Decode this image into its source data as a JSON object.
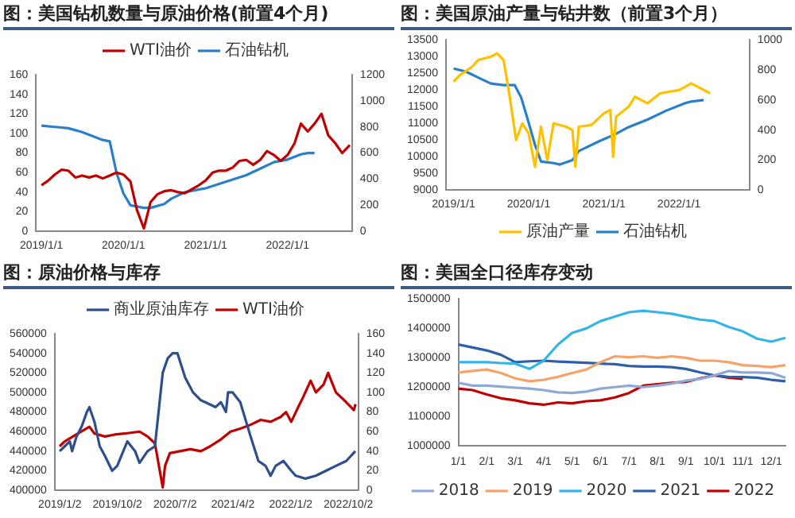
{
  "chart_data": [
    {
      "type": "line",
      "title": "图：美国钻机数量与原油价格(前置4个月)",
      "legend": "top",
      "grid": false,
      "marker": "none",
      "line_style": "solid",
      "xlim": [
        "2018-12-08",
        "2022-10-15"
      ],
      "xticks": [
        {
          "value": "2019-01-01",
          "label": "2019/1/1"
        },
        {
          "value": "2020-01-01",
          "label": "2020/1/1"
        },
        {
          "value": "2021-01-01",
          "label": "2021/1/1"
        },
        {
          "value": "2022-01-01",
          "label": "2022/1/1"
        }
      ],
      "ylim": [
        0,
        160
      ],
      "yticks": [
        0,
        20,
        40,
        60,
        80,
        100,
        120,
        140,
        160
      ],
      "y2lim": [
        0,
        1200
      ],
      "y2ticks": [
        0,
        200,
        400,
        600,
        800,
        1000,
        1200
      ],
      "series": [
        {
          "name": "WTI油价",
          "color": "#c00000",
          "x": [
            "2019-01",
            "2019-02",
            "2019-03",
            "2019-04",
            "2019-05",
            "2019-06",
            "2019-07",
            "2019-08",
            "2019-09",
            "2019-10",
            "2019-11",
            "2019-12",
            "2020-01",
            "2020-02",
            "2020-03",
            "2020-04",
            "2020-05",
            "2020-06",
            "2020-07",
            "2020-08",
            "2020-09",
            "2020-10",
            "2020-11",
            "2020-12",
            "2021-01",
            "2021-02",
            "2021-03",
            "2021-04",
            "2021-05",
            "2021-06",
            "2021-07",
            "2021-08",
            "2021-09",
            "2021-10",
            "2021-11",
            "2021-12",
            "2022-01",
            "2022-02",
            "2022-03",
            "2022-04",
            "2022-05",
            "2022-06",
            "2022-07",
            "2022-08",
            "2022-09",
            "2022-10-05"
          ],
          "values": [
            47,
            52,
            58,
            63,
            62,
            55,
            57,
            55,
            57,
            54,
            57,
            60,
            58,
            51,
            22,
            3,
            30,
            38,
            41,
            42,
            40,
            39,
            43,
            47,
            52,
            60,
            62,
            62,
            65,
            72,
            73,
            68,
            73,
            82,
            78,
            72,
            78,
            90,
            110,
            102,
            110,
            120,
            98,
            90,
            80,
            88
          ]
        },
        {
          "name": "石油钻机",
          "color": "#2a7fc9",
          "axis": "y2",
          "x": [
            "2019-01",
            "2019-03",
            "2019-05",
            "2019-07",
            "2019-09",
            "2019-10",
            "2019-11",
            "2019-12",
            "2020-01",
            "2020-02",
            "2020-04",
            "2020-05",
            "2020-07",
            "2020-08",
            "2020-10",
            "2021-01",
            "2021-04",
            "2021-07",
            "2021-09",
            "2021-11",
            "2022-01",
            "2022-03",
            "2022-04",
            "2022-05"
          ],
          "values": [
            810,
            800,
            790,
            760,
            720,
            700,
            690,
            450,
            290,
            200,
            180,
            180,
            210,
            250,
            300,
            330,
            380,
            430,
            480,
            530,
            550,
            590,
            600,
            600
          ]
        }
      ]
    },
    {
      "type": "line",
      "title": "图：美国原油产量与钻井数（前置3个月）",
      "legend": "bottom",
      "grid": false,
      "marker": "none",
      "line_style": "solid",
      "xlim": [
        "2018-11-25",
        "2022-12-10"
      ],
      "xticks": [
        {
          "value": "2019-01-01",
          "label": "2019/1/1"
        },
        {
          "value": "2020-01-01",
          "label": "2020/1/1"
        },
        {
          "value": "2021-01-01",
          "label": "2021/1/1"
        },
        {
          "value": "2022-01-01",
          "label": "2022/1/1"
        }
      ],
      "ylim": [
        9000,
        13500
      ],
      "yticks": [
        9000,
        9500,
        10000,
        10500,
        11000,
        11500,
        12000,
        12500,
        13000,
        13500
      ],
      "y2lim": [
        0,
        1000
      ],
      "y2ticks": [
        0,
        200,
        400,
        600,
        800,
        1000
      ],
      "series": [
        {
          "name": "原油产量",
          "color": "#ffc000",
          "x": [
            "2019-01-01",
            "2019-02-01",
            "2019-04-01",
            "2019-05-01",
            "2019-07-01",
            "2019-08-01",
            "2019-09-01",
            "2019-10-01",
            "2019-11-01",
            "2019-12-01",
            "2020-01-01",
            "2020-02-01",
            "2020-03-01",
            "2020-04-01",
            "2020-05-01",
            "2020-07-01",
            "2020-08-01",
            "2020-08-15",
            "2020-09-01",
            "2020-11-01",
            "2021-01-01",
            "2021-02-01",
            "2021-02-15",
            "2021-03-01",
            "2021-05-01",
            "2021-06-01",
            "2021-08-01",
            "2021-10-01",
            "2022-01-01",
            "2022-02-01",
            "2022-03-01",
            "2022-04-01",
            "2022-06-01"
          ],
          "values": [
            12250,
            12450,
            12700,
            12900,
            13000,
            13100,
            12900,
            11800,
            10500,
            11000,
            10700,
            9700,
            10900,
            9900,
            11000,
            10900,
            10800,
            9700,
            10900,
            10950,
            11300,
            11400,
            10000,
            11200,
            11500,
            11800,
            11600,
            11900,
            12000,
            12100,
            12200,
            12100,
            11900
          ]
        },
        {
          "name": "石油钻机",
          "color": "#2a7fc9",
          "axis": "y2",
          "x": [
            "2019-01",
            "2019-03",
            "2019-05",
            "2019-07",
            "2019-09",
            "2019-10-25",
            "2019-11-25",
            "2020-01",
            "2020-02",
            "2020-03",
            "2020-05",
            "2020-06",
            "2020-08",
            "2020-09",
            "2020-12",
            "2021-03",
            "2021-05",
            "2021-08",
            "2021-11",
            "2022-02",
            "2022-03",
            "2022-05"
          ],
          "values": [
            810,
            790,
            750,
            710,
            700,
            700,
            620,
            450,
            300,
            190,
            180,
            170,
            200,
            260,
            320,
            375,
            420,
            470,
            530,
            580,
            590,
            600
          ]
        }
      ]
    },
    {
      "type": "line",
      "title": "图：原油价格与库存",
      "legend": "top",
      "grid": false,
      "marker": "none",
      "line_style": "solid",
      "xlim": [
        "2018-12-08",
        "2022-11-18"
      ],
      "xticks": [
        {
          "value": "2019-01-02",
          "label": "2019/1/2"
        },
        {
          "value": "2019-10-02",
          "label": "2019/10/2"
        },
        {
          "value": "2020-07-02",
          "label": "2020/7/2"
        },
        {
          "value": "2021-04-02",
          "label": "2021/4/2"
        },
        {
          "value": "2022-01-02",
          "label": "2022/1/2"
        },
        {
          "value": "2022-10-02",
          "label": "2022/10/2"
        }
      ],
      "ylim": [
        400000,
        560000
      ],
      "yticks": [
        400000,
        420000,
        440000,
        460000,
        480000,
        500000,
        520000,
        540000,
        560000
      ],
      "y2lim": [
        0,
        160
      ],
      "y2ticks": [
        0,
        20,
        40,
        60,
        80,
        100,
        120,
        140,
        160
      ],
      "series": [
        {
          "name": "商业原油库存",
          "color": "#2f4e8c",
          "x": [
            "2019-01-01",
            "2019-01-25",
            "2019-02-18",
            "2019-03-01",
            "2019-03-22",
            "2019-04-15",
            "2019-05-10",
            "2019-05-22",
            "2019-06-15",
            "2019-07-10",
            "2019-08-04",
            "2019-09-07",
            "2019-10-01",
            "2019-11-18",
            "2019-12-25",
            "2020-01-15",
            "2020-02-22",
            "2020-03-28",
            "2020-05-04",
            "2020-05-28",
            "2020-06-20",
            "2020-07-13",
            "2020-08-19",
            "2020-09-25",
            "2020-11-01",
            "2020-11-22",
            "2021-01-10",
            "2021-02-04",
            "2021-02-28",
            "2021-03-10",
            "2021-04-01",
            "2021-05-07",
            "2021-06-25",
            "2021-08-01",
            "2021-09-04",
            "2021-09-28",
            "2021-10-22",
            "2021-11-28",
            "2022-01-04",
            "2022-01-25",
            "2022-03-13",
            "2022-05-01",
            "2022-06-18",
            "2022-08-04",
            "2022-09-22",
            "2022-11-04"
          ],
          "values": [
            440000,
            445000,
            450000,
            440000,
            455000,
            465000,
            480000,
            485000,
            470000,
            445000,
            435000,
            420000,
            425000,
            450000,
            440000,
            428000,
            440000,
            445000,
            520000,
            535000,
            540000,
            540000,
            515000,
            500000,
            492000,
            490000,
            485000,
            490000,
            480000,
            500000,
            500000,
            490000,
            455000,
            430000,
            425000,
            415000,
            425000,
            430000,
            420000,
            415000,
            412000,
            415000,
            420000,
            425000,
            430000,
            440000
          ]
        },
        {
          "name": "WTI油价",
          "color": "#c00000",
          "axis": "y2",
          "x": [
            "2019-01-01",
            "2019-01-25",
            "2019-03-05",
            "2019-04-28",
            "2019-05-22",
            "2019-06-15",
            "2019-08-04",
            "2019-09-20",
            "2019-11-05",
            "2020-01-15",
            "2020-02-22",
            "2020-03-28",
            "2020-04-20",
            "2020-05-04",
            "2020-05-15",
            "2020-06-07",
            "2020-07-25",
            "2020-09-12",
            "2020-11-01",
            "2020-12-15",
            "2021-02-04",
            "2021-03-22",
            "2021-05-07",
            "2021-06-25",
            "2021-08-12",
            "2021-09-28",
            "2021-11-15",
            "2021-12-10",
            "2022-01-04",
            "2022-02-06",
            "2022-03-01",
            "2022-04-06",
            "2022-05-01",
            "2022-06-06",
            "2022-06-28",
            "2022-08-04",
            "2022-09-22",
            "2022-10-28",
            "2022-11-05"
          ],
          "values": [
            45,
            50,
            55,
            62,
            65,
            58,
            55,
            57,
            58,
            60,
            55,
            48,
            20,
            3,
            25,
            38,
            40,
            42,
            40,
            45,
            52,
            60,
            63,
            67,
            72,
            70,
            75,
            80,
            70,
            85,
            95,
            112,
            100,
            108,
            120,
            100,
            90,
            82,
            88
          ]
        }
      ]
    },
    {
      "type": "line",
      "title": "图：美国全口径库存变动",
      "legend": "bottom",
      "grid": false,
      "marker": "none",
      "line_style": "solid",
      "categories": [
        "1/1",
        null,
        "2/1",
        null,
        "3/1",
        null,
        "4/1",
        null,
        "5/1",
        null,
        "6/1",
        null,
        "7/1",
        null,
        "8/1",
        null,
        "9/1",
        null,
        "10/1",
        null,
        "11/1",
        null,
        "12/1",
        null
      ],
      "ylim": [
        1000000,
        1500000
      ],
      "yticks": [
        1000000,
        1100000,
        1200000,
        1300000,
        1400000,
        1500000
      ],
      "series": [
        {
          "name": "2018",
          "color": "#8fa9d6",
          "values": [
            1215000,
            1205000,
            1205000,
            1202000,
            1198000,
            1195000,
            1190000,
            1182000,
            1180000,
            1185000,
            1195000,
            1200000,
            1205000,
            1200000,
            1205000,
            1212000,
            1222000,
            1228000,
            1240000,
            1255000,
            1250000,
            1250000,
            1248000,
            1232000
          ]
        },
        {
          "name": "2019",
          "color": "#f4a46a",
          "values": [
            1250000,
            1255000,
            1260000,
            1248000,
            1230000,
            1220000,
            1225000,
            1235000,
            1248000,
            1260000,
            1285000,
            1305000,
            1302000,
            1305000,
            1300000,
            1305000,
            1300000,
            1290000,
            1290000,
            1285000,
            1275000,
            1272000,
            1268000,
            1275000
          ]
        },
        {
          "name": "2020",
          "color": "#33b5e5",
          "values": [
            1285000,
            1285000,
            1285000,
            1282000,
            1280000,
            1262000,
            1290000,
            1345000,
            1385000,
            1400000,
            1425000,
            1440000,
            1455000,
            1460000,
            1455000,
            1450000,
            1440000,
            1430000,
            1425000,
            1405000,
            1390000,
            1365000,
            1355000,
            1368000
          ]
        },
        {
          "name": "2021",
          "color": "#2e5fa8",
          "values": [
            1345000,
            1335000,
            1325000,
            1310000,
            1285000,
            1288000,
            1290000,
            1287000,
            1285000,
            1283000,
            1280000,
            1278000,
            1272000,
            1270000,
            1270000,
            1268000,
            1262000,
            1250000,
            1240000,
            1235000,
            1234000,
            1232000,
            1225000,
            1220000
          ]
        },
        {
          "name": "2022",
          "color": "#c00000",
          "values": [
            1195000,
            1190000,
            1175000,
            1162000,
            1155000,
            1145000,
            1140000,
            1148000,
            1145000,
            1152000,
            1155000,
            1165000,
            1180000,
            1205000,
            1210000,
            1215000,
            1218000,
            1230000,
            1240000,
            1232000,
            1228000,
            null,
            null,
            null
          ]
        }
      ]
    }
  ]
}
